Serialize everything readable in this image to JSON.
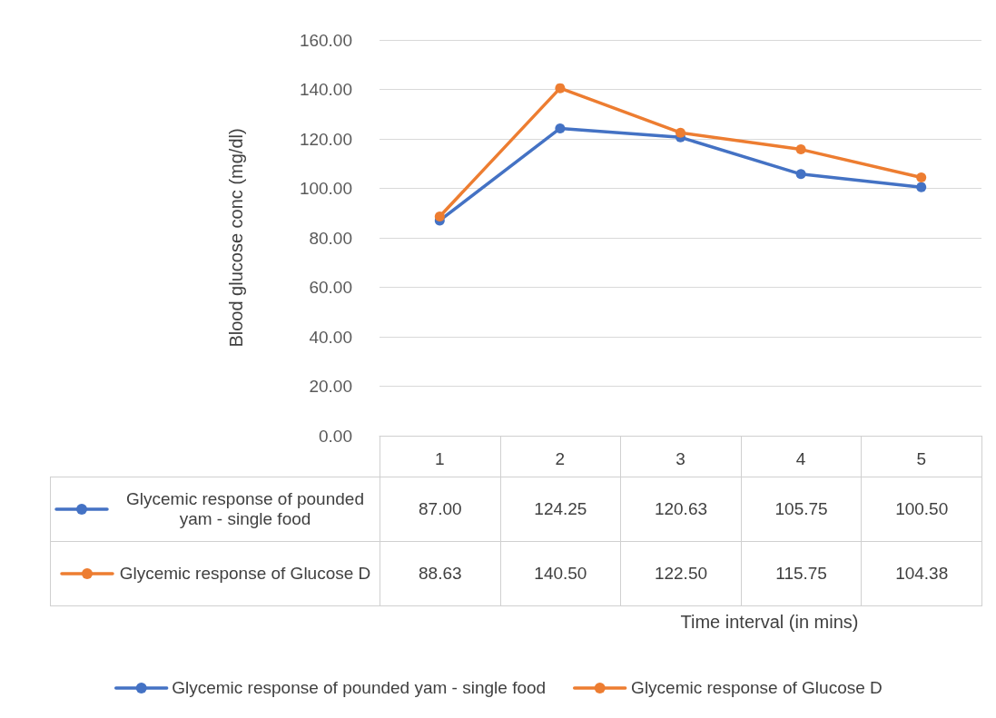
{
  "chart_data": {
    "type": "line",
    "annotations": [
      "Time interval (in mins)"
    ],
    "ylabel": "Blood glucose conc (mg/dl)",
    "categories": [
      "1",
      "2",
      "3",
      "4",
      "5"
    ],
    "series": [
      {
        "name": "Glycemic response of pounded yam - single food",
        "color": "#4472c4",
        "values": [
          87.0,
          124.25,
          120.63,
          105.75,
          100.5
        ],
        "value_labels": [
          "87.00",
          "124.25",
          "120.63",
          "105.75",
          "100.50"
        ]
      },
      {
        "name": "Glycemic response of Glucose D",
        "color": "#ed7d31",
        "values": [
          88.63,
          140.5,
          122.5,
          115.75,
          104.38
        ],
        "value_labels": [
          "88.63",
          "140.50",
          "122.50",
          "115.75",
          "104.38"
        ]
      }
    ],
    "ylim": [
      0,
      160
    ],
    "yticks": [
      {
        "value": 0,
        "label": "0.00"
      },
      {
        "value": 20,
        "label": "20.00"
      },
      {
        "value": 40,
        "label": "40.00"
      },
      {
        "value": 60,
        "label": "60.00"
      },
      {
        "value": 80,
        "label": "80.00"
      },
      {
        "value": 100,
        "label": "100.00"
      },
      {
        "value": 120,
        "label": "120.00"
      },
      {
        "value": 140,
        "label": "140.00"
      },
      {
        "value": 160,
        "label": "160.00"
      }
    ],
    "grid": "y",
    "legend": "bottom",
    "marker": "circle",
    "line_style": "solid"
  }
}
